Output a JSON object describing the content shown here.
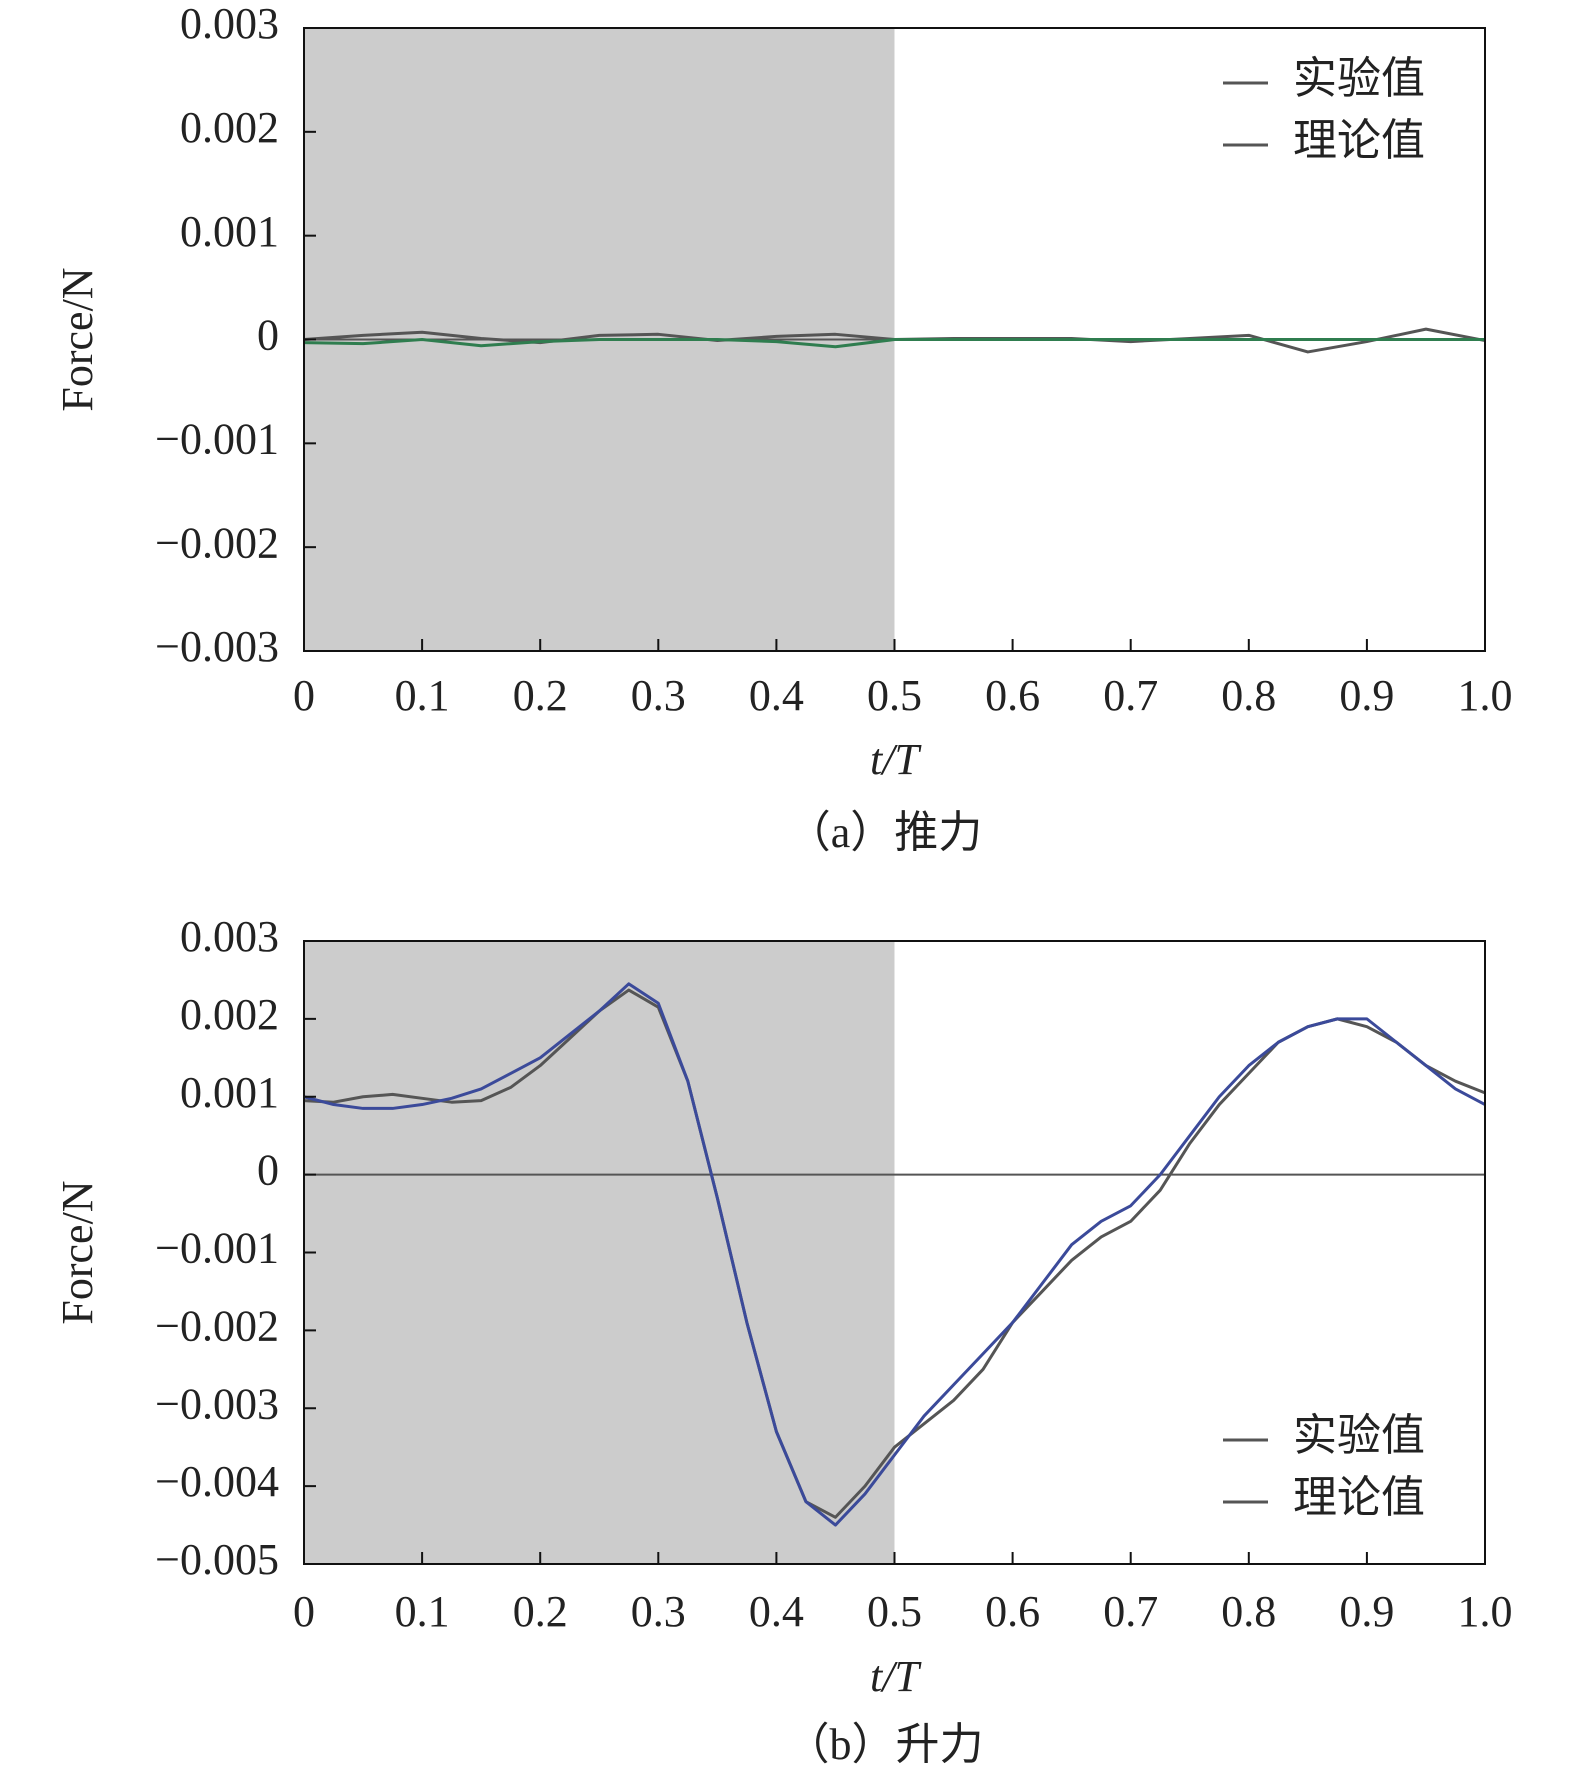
{
  "chart_data": [
    {
      "type": "line",
      "caption": "（a）推力",
      "xlabel": "t/T",
      "ylabel": "Force/N",
      "x": [
        0,
        0.05,
        0.1,
        0.15,
        0.2,
        0.25,
        0.3,
        0.35,
        0.4,
        0.45,
        0.5,
        0.55,
        0.6,
        0.65,
        0.7,
        0.75,
        0.8,
        0.85,
        0.9,
        0.95,
        1.0
      ],
      "series": [
        {
          "name": "实验值",
          "color": "#555555",
          "values": [
            0,
            4e-05,
            7e-05,
            1e-05,
            -3e-05,
            4e-05,
            5e-05,
            -1e-05,
            3e-05,
            5e-05,
            0,
            1e-05,
            1e-05,
            1e-05,
            -2e-05,
            1e-05,
            4e-05,
            -0.00012,
            -2e-05,
            0.0001,
            -1e-05
          ]
        },
        {
          "name": "理论值",
          "color": "#2f7d4f",
          "values": [
            -3e-05,
            -4e-05,
            0,
            -6e-05,
            -2e-05,
            0,
            0,
            0,
            -2e-05,
            -7e-05,
            0,
            0,
            0,
            0,
            0,
            0,
            0,
            0,
            0,
            0,
            0
          ]
        }
      ],
      "shaded_region": [
        0,
        0.5
      ],
      "shade_color": "#cccccc",
      "xlim": [
        0,
        1.0
      ],
      "xticks": [
        0,
        0.1,
        0.2,
        0.3,
        0.4,
        0.5,
        0.6,
        0.7,
        0.8,
        0.9,
        {
          "value": 1.0,
          "label": "1.0"
        }
      ],
      "ylim": [
        -0.003,
        0.003
      ],
      "yticks": [
        {
          "value": -0.003,
          "label": "−0.003"
        },
        {
          "value": -0.002,
          "label": "−0.002"
        },
        {
          "value": -0.001,
          "label": "−0.001"
        },
        0,
        0.001,
        0.002,
        0.003
      ],
      "legend": "upper right"
    },
    {
      "type": "line",
      "caption": "（b）升力",
      "xlabel": "t/T",
      "ylabel": "Force/N",
      "x": [
        0,
        0.025,
        0.05,
        0.075,
        0.1,
        0.125,
        0.15,
        0.175,
        0.2,
        0.225,
        0.25,
        0.275,
        0.3,
        0.325,
        0.35,
        0.375,
        0.4,
        0.425,
        0.45,
        0.475,
        0.5,
        0.525,
        0.55,
        0.575,
        0.6,
        0.625,
        0.65,
        0.675,
        0.7,
        0.725,
        0.75,
        0.775,
        0.8,
        0.825,
        0.85,
        0.875,
        0.9,
        0.925,
        0.95,
        0.975,
        1.0
      ],
      "series": [
        {
          "name": "实验值",
          "color": "#555555",
          "values": [
            0.00095,
            0.00093,
            0.001,
            0.00103,
            0.00098,
            0.00093,
            0.00095,
            0.00112,
            0.0014,
            0.00175,
            0.0021,
            0.00237,
            0.00215,
            0.0012,
            -0.0003,
            -0.0019,
            -0.0033,
            -0.0042,
            -0.0044,
            -0.004,
            -0.0035,
            -0.0032,
            -0.0029,
            -0.0025,
            -0.0019,
            -0.0015,
            -0.0011,
            -0.0008,
            -0.0006,
            -0.0002,
            0.0004,
            0.0009,
            0.0013,
            0.0017,
            0.0019,
            0.002,
            0.0019,
            0.0017,
            0.0014,
            0.0012,
            0.00105
          ]
        },
        {
          "name": "理论值",
          "color": "#3b4a9a",
          "values": [
            0.001,
            0.0009,
            0.00085,
            0.00085,
            0.0009,
            0.00098,
            0.0011,
            0.0013,
            0.0015,
            0.0018,
            0.0021,
            0.00245,
            0.0022,
            0.0012,
            -0.0003,
            -0.0019,
            -0.0033,
            -0.0042,
            -0.0045,
            -0.0041,
            -0.0036,
            -0.0031,
            -0.0027,
            -0.0023,
            -0.0019,
            -0.0014,
            -0.0009,
            -0.0006,
            -0.0004,
            0,
            0.0005,
            0.001,
            0.0014,
            0.0017,
            0.0019,
            0.002,
            0.002,
            0.0017,
            0.0014,
            0.0011,
            0.0009
          ]
        }
      ],
      "shaded_region": [
        0,
        0.5
      ],
      "shade_color": "#cccccc",
      "xlim": [
        0,
        1.0
      ],
      "xticks": [
        0,
        0.1,
        0.2,
        0.3,
        0.4,
        0.5,
        0.6,
        0.7,
        0.8,
        0.9,
        {
          "value": 1.0,
          "label": "1.0"
        }
      ],
      "ylim": [
        -0.005,
        0.003
      ],
      "yticks": [
        {
          "value": -0.005,
          "label": "−0.005"
        },
        {
          "value": -0.004,
          "label": "−0.004"
        },
        {
          "value": -0.003,
          "label": "−0.003"
        },
        {
          "value": -0.002,
          "label": "−0.002"
        },
        {
          "value": -0.001,
          "label": "−0.001"
        },
        0,
        0.001,
        0.002,
        0.003
      ],
      "legend": "lower right"
    }
  ]
}
